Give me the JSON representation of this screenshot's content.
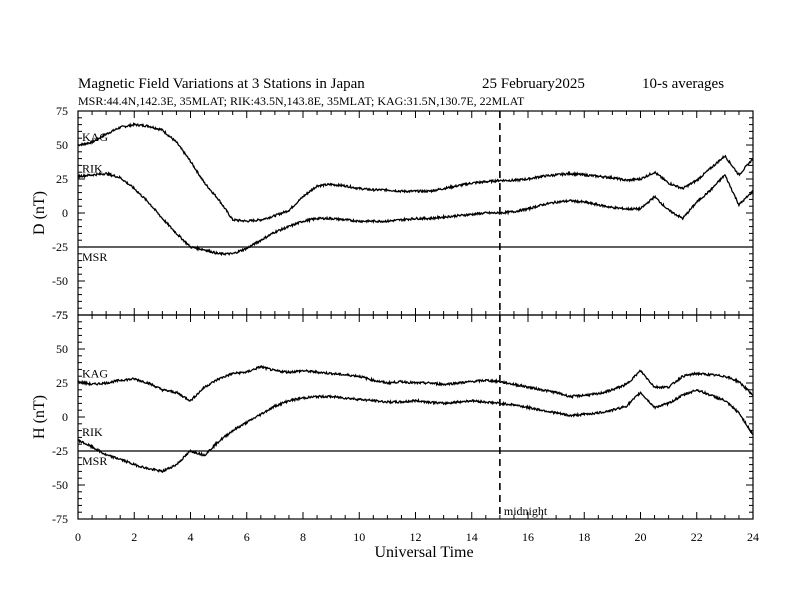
{
  "header": {
    "title_left": "Magnetic Field Variations at 3 Stations in Japan",
    "title_date": "25 February2025",
    "title_right": "10-s averages",
    "subtitle": "MSR:44.4N,142.3E, 35MLAT;  RIK:43.5N,143.8E, 35MLAT;  KAG:31.5N,130.7E, 22MLAT"
  },
  "chart_data": [
    {
      "type": "line",
      "ylabel": "D (nT)",
      "ylim": [
        -75,
        75
      ],
      "yticks": [
        75,
        50,
        25,
        0,
        -25,
        -50,
        -75
      ],
      "xlim": [
        0,
        24
      ],
      "series": [
        {
          "name": "KAG",
          "x": [
            0,
            0.5,
            1,
            1.5,
            2,
            2.5,
            3,
            3.5,
            4,
            4.5,
            5,
            5.5,
            6,
            6.5,
            7,
            7.5,
            8,
            8.5,
            9,
            9.5,
            10,
            10.5,
            11,
            11.5,
            12,
            12.5,
            13,
            13.5,
            14,
            14.5,
            15,
            15.5,
            16,
            16.5,
            17,
            17.5,
            18,
            18.5,
            19,
            19.5,
            20,
            20.5,
            21,
            21.5,
            22,
            22.5,
            23,
            23.5,
            24
          ],
          "y": [
            50,
            52,
            58,
            63,
            65,
            64,
            61,
            52,
            38,
            22,
            10,
            -5,
            -6,
            -5,
            -2,
            2,
            12,
            20,
            21,
            20,
            18,
            17,
            17,
            16,
            16,
            16,
            18,
            20,
            22,
            23,
            24,
            24,
            25,
            27,
            28,
            29,
            28,
            27,
            26,
            24,
            25,
            30,
            22,
            18,
            24,
            33,
            42,
            28,
            40
          ]
        },
        {
          "name": "RIK",
          "x": [
            0,
            0.5,
            1,
            1.5,
            2,
            2.5,
            3,
            3.5,
            4,
            4.5,
            5,
            5.5,
            6,
            6.5,
            7,
            7.5,
            8,
            8.5,
            9,
            9.5,
            10,
            10.5,
            11,
            11.5,
            12,
            12.5,
            13,
            13.5,
            14,
            14.5,
            15,
            15.5,
            16,
            16.5,
            17,
            17.5,
            18,
            18.5,
            19,
            19.5,
            20,
            20.5,
            21,
            21.5,
            22,
            22.5,
            23,
            23.5,
            24
          ],
          "y": [
            27,
            28,
            29,
            26,
            18,
            8,
            -4,
            -15,
            -25,
            -27,
            -30,
            -30,
            -26,
            -20,
            -14,
            -10,
            -6,
            -4,
            -4,
            -5,
            -6,
            -6,
            -6,
            -5,
            -4,
            -4,
            -3,
            -2,
            -1,
            0,
            0,
            1,
            3,
            6,
            8,
            9,
            8,
            6,
            4,
            3,
            3,
            12,
            2,
            -4,
            8,
            17,
            28,
            6,
            16
          ]
        },
        {
          "name": "MSR",
          "x": [
            0,
            24
          ],
          "y": [
            -25,
            -25
          ]
        }
      ]
    },
    {
      "type": "line",
      "ylabel": "H (nT)",
      "ylim": [
        -75,
        75
      ],
      "yticks": [
        75,
        50,
        25,
        0,
        -25,
        -50,
        -75
      ],
      "xlim": [
        0,
        24
      ],
      "series": [
        {
          "name": "KAG",
          "x": [
            0,
            0.5,
            1,
            1.5,
            2,
            2.5,
            3,
            3.5,
            4,
            4.5,
            5,
            5.5,
            6,
            6.5,
            7,
            7.5,
            8,
            8.5,
            9,
            9.5,
            10,
            10.5,
            11,
            11.5,
            12,
            12.5,
            13,
            13.5,
            14,
            14.5,
            15,
            15.5,
            16,
            16.5,
            17,
            17.5,
            18,
            18.5,
            19,
            19.5,
            20,
            20.5,
            21,
            21.5,
            22,
            22.5,
            23,
            23.5,
            24
          ],
          "y": [
            26,
            24,
            25,
            27,
            28,
            25,
            20,
            18,
            12,
            22,
            28,
            32,
            33,
            37,
            34,
            33,
            34,
            33,
            32,
            31,
            30,
            27,
            25,
            26,
            25,
            25,
            24,
            25,
            26,
            27,
            26,
            24,
            22,
            20,
            18,
            15,
            16,
            17,
            20,
            24,
            34,
            22,
            22,
            30,
            32,
            31,
            30,
            26,
            16
          ]
        },
        {
          "name": "RIK",
          "x": [
            0,
            0.5,
            1,
            1.5,
            2,
            2.5,
            3,
            3.5,
            4,
            4.5,
            5,
            5.5,
            6,
            6.5,
            7,
            7.5,
            8,
            8.5,
            9,
            9.5,
            10,
            10.5,
            11,
            11.5,
            12,
            12.5,
            13,
            13.5,
            14,
            14.5,
            15,
            15.5,
            16,
            16.5,
            17,
            17.5,
            18,
            18.5,
            19,
            19.5,
            20,
            20.5,
            21,
            21.5,
            22,
            22.5,
            23,
            23.5,
            24
          ],
          "y": [
            -17,
            -22,
            -28,
            -31,
            -35,
            -38,
            -40,
            -35,
            -25,
            -28,
            -18,
            -10,
            -4,
            2,
            8,
            12,
            14,
            15,
            15,
            14,
            13,
            12,
            11,
            11,
            12,
            11,
            10,
            11,
            12,
            11,
            10,
            9,
            7,
            5,
            3,
            1,
            2,
            3,
            5,
            8,
            18,
            7,
            10,
            16,
            20,
            16,
            12,
            3,
            -13
          ]
        },
        {
          "name": "MSR",
          "x": [
            0,
            24
          ],
          "y": [
            -25,
            -25
          ]
        }
      ],
      "annotations": [
        "midnight"
      ]
    }
  ],
  "shared": {
    "xlabel": "Universal Time",
    "xticks": [
      0,
      2,
      4,
      6,
      8,
      10,
      12,
      14,
      16,
      18,
      20,
      22,
      24
    ],
    "midnight_x": 15,
    "midnight_label": "midnight"
  }
}
